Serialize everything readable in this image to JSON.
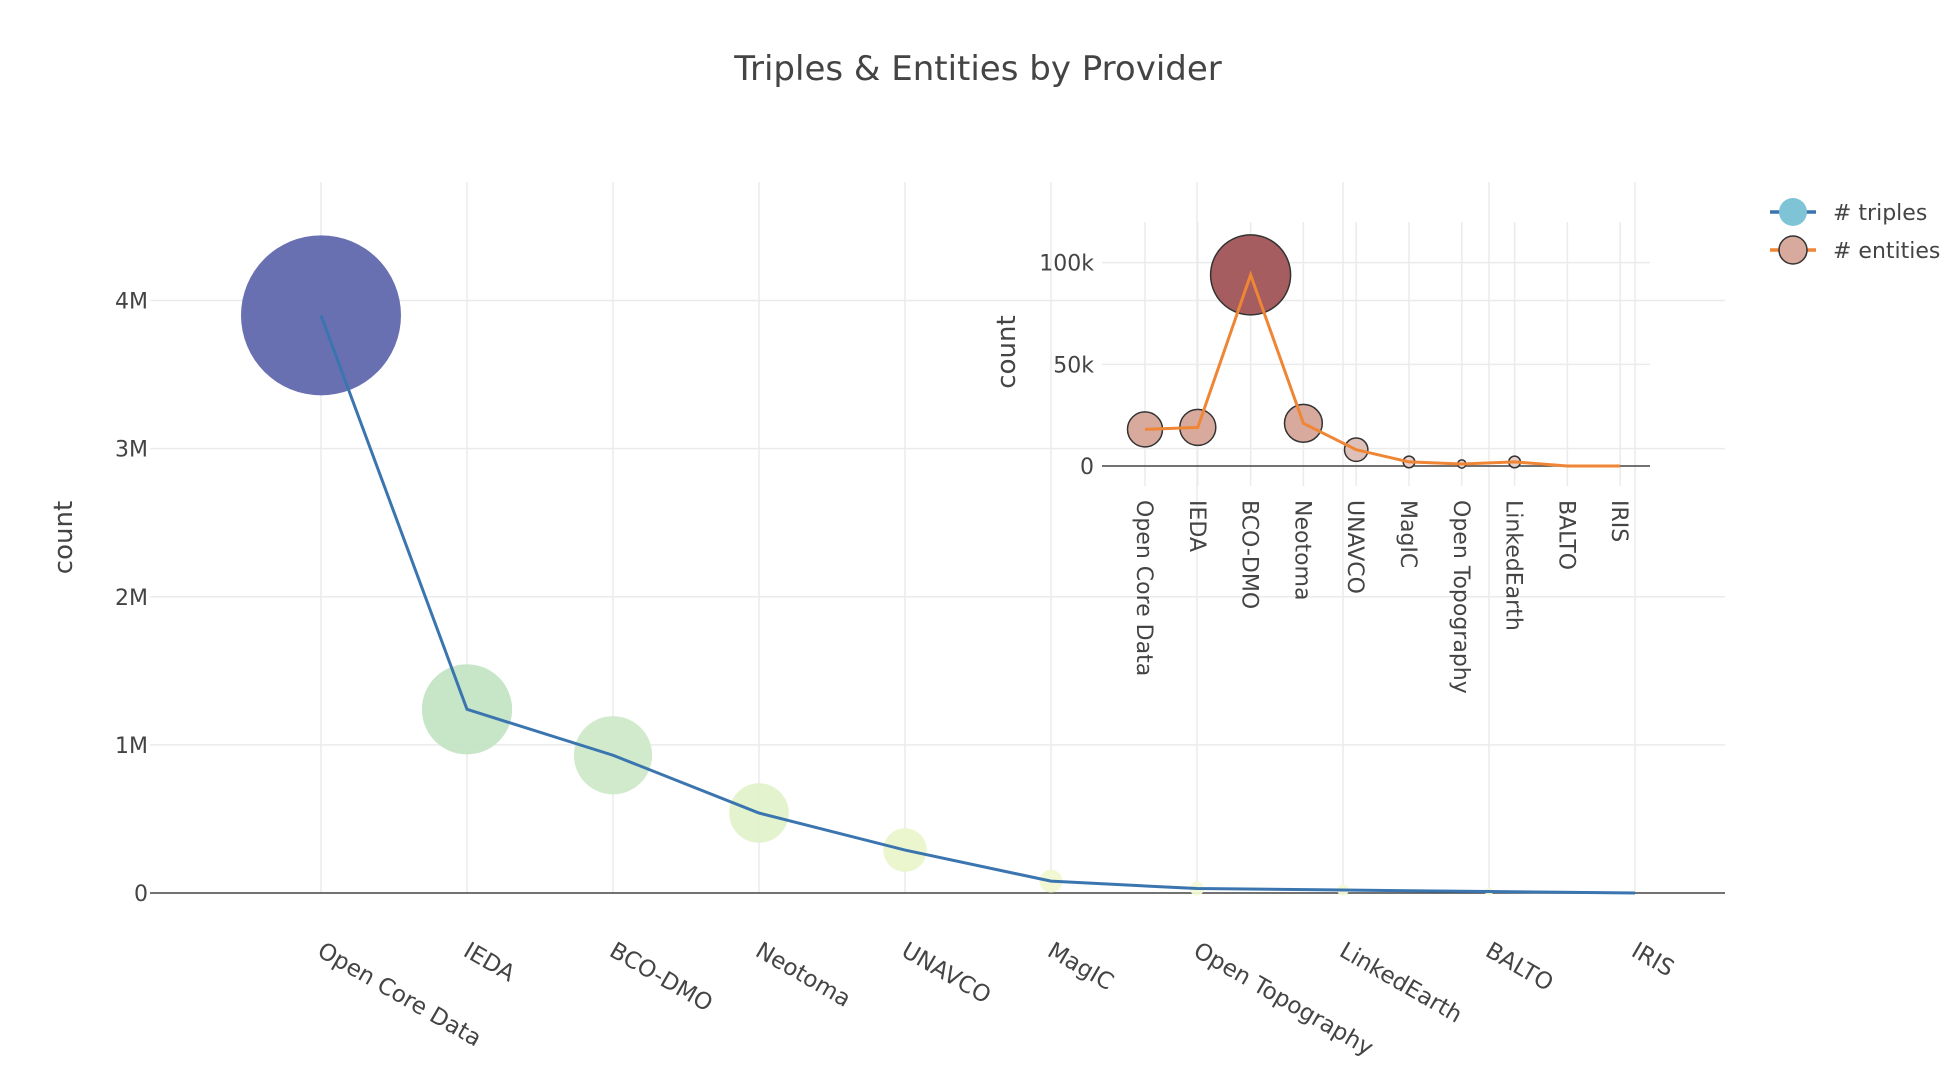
{
  "chart_data": [
    {
      "type": "line",
      "title": "Triples & Entities by Provider",
      "xlabel": "",
      "ylabel": "count",
      "ylim": [
        0,
        4800000
      ],
      "grid": true,
      "categories": [
        "Open Core Data",
        "IEDA",
        "BCO-DMO",
        "Neotoma",
        "UNAVCO",
        "MagIC",
        "Open Topography",
        "LinkedEarth",
        "BALTO",
        "IRIS"
      ],
      "yticks": [
        0,
        1000000,
        2000000,
        3000000,
        4000000
      ],
      "ytick_labels": [
        "0",
        "1M",
        "2M",
        "3M",
        "4M"
      ],
      "series": [
        {
          "name": "# triples",
          "values": [
            3900000,
            1240000,
            930000,
            540000,
            290000,
            80000,
            30000,
            20000,
            10000,
            0
          ],
          "line_color": "#3b75af",
          "marker_colors": [
            "#6068ae",
            "#c4e4c4",
            "#cde9c8",
            "#e2f2cb",
            "#eaf5cc",
            "#f1f8d2",
            "#f3f9d6",
            "#f4fad8",
            "#f5fad9",
            "#f6fbdb"
          ],
          "marker_label": "bubble size ~ # triples"
        }
      ]
    },
    {
      "type": "line",
      "title": "",
      "xlabel": "",
      "ylabel": "count",
      "ylim": [
        0,
        120000
      ],
      "grid": true,
      "categories": [
        "Open Core Data",
        "IEDA",
        "BCO-DMO",
        "Neotoma",
        "UNAVCO",
        "MagIC",
        "Open Topography",
        "LinkedEarth",
        "BALTO",
        "IRIS"
      ],
      "yticks": [
        0,
        50000,
        100000
      ],
      "ytick_labels": [
        "0",
        "50k",
        "100k"
      ],
      "series": [
        {
          "name": "# entities",
          "values": [
            18000,
            19000,
            94000,
            21000,
            8000,
            2000,
            1000,
            2000,
            0,
            0
          ],
          "line_color": "#ef8636",
          "marker_colors": [
            "#d8aa9d",
            "#d8aa9d",
            "#a65d5f",
            "#d8aa9d",
            "#dfc0b8",
            "#e7d0c9",
            "#e9d4cd",
            "#e7d0c9",
            "#ecdad4",
            "#ecdad4"
          ]
        }
      ]
    }
  ],
  "legend": {
    "position": "top-right",
    "items": [
      {
        "label": "# triples",
        "line_color": "#3b75af",
        "marker_color": "#7fc3d6"
      },
      {
        "label": "# entities",
        "line_color": "#ef8636",
        "marker_color": "#d8aa9d"
      }
    ]
  }
}
